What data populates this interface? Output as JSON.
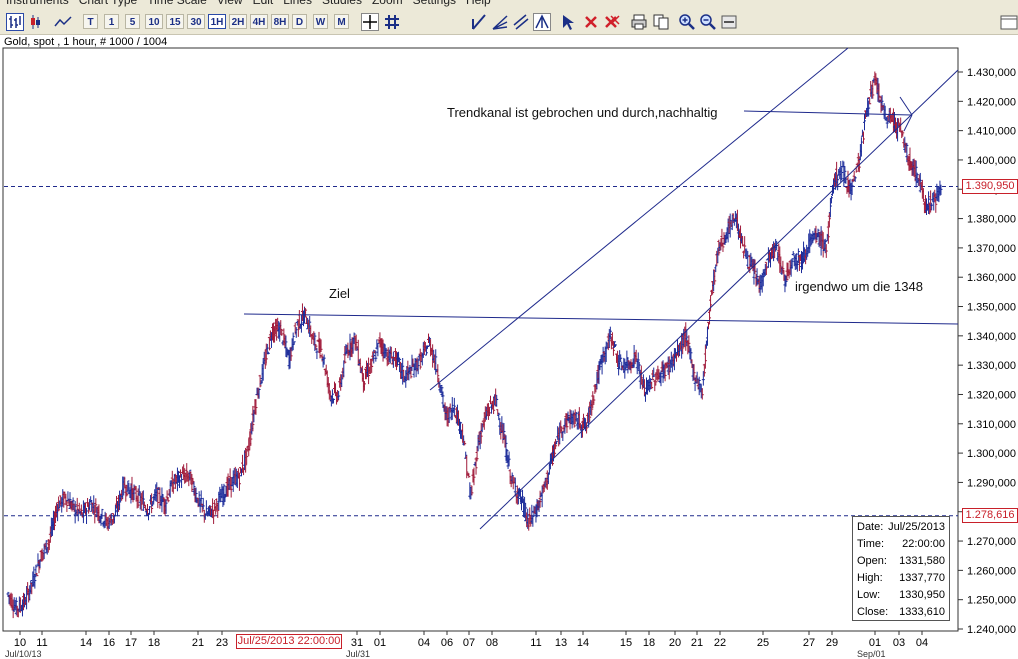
{
  "menu": [
    "Instruments",
    "Chart Type",
    "Time Scale",
    "View",
    "Edit",
    "Lines",
    "Studies",
    "Zoom",
    "Settings",
    "Help"
  ],
  "toolbar": {
    "timeframes": [
      "T",
      "1",
      "5",
      "10",
      "15",
      "30",
      "1H",
      "2H",
      "4H",
      "8H",
      "D",
      "W",
      "M"
    ],
    "active_timeframe": "1H",
    "icons": [
      "bar-chart-icon",
      "candle-chart-icon",
      "line-chart-icon",
      "crosshair-icon",
      "grid-icon",
      "trendline-icon",
      "fan-icon",
      "channel-icon",
      "pitchfork-icon",
      "select-icon",
      "delete-icon",
      "delete-all-icon",
      "print-icon",
      "copy-icon",
      "zoom-in-icon",
      "zoom-out-icon",
      "zoom-fit-icon"
    ]
  },
  "info_line": "Gold, spot , 1 hour, # 1000 / 1004",
  "price_markers": {
    "current": "1.390,950",
    "lower": "1.278,616"
  },
  "time_marker": "Jul/25/2013 22:00:00",
  "ohlc_box": {
    "rows": [
      {
        "key": "Date:",
        "value": "Jul/25/2013"
      },
      {
        "key": "Time:",
        "value": "22:00:00"
      },
      {
        "key": "Open:",
        "value": "1331,580"
      },
      {
        "key": "High:",
        "value": "1337,770"
      },
      {
        "key": "Low:",
        "value": "1330,950"
      },
      {
        "key": "Close:",
        "value": "1333,610"
      }
    ]
  },
  "annotations": {
    "trend": "Trendkanal ist gebrochen und durch,nachhaltig",
    "ziel": "Ziel",
    "target": "irgendwo um die 1348"
  },
  "bottom_labels": {
    "left": "Jul/10/13",
    "mid": "Jul/31",
    "right": "Sep/01"
  },
  "colors": {
    "up_bar": "#1b2b9a",
    "down_bar": "#a01a3a",
    "lines": "#1f2a8c",
    "marker": "#c8202a"
  },
  "chart_data": {
    "type": "bar",
    "title": "Gold, spot , 1 hour, # 1000 / 1004",
    "y_ticks": [
      "1.430,000",
      "1.420,000",
      "1.410,000",
      "1.400,000",
      "1.390,000",
      "1.380,000",
      "1.370,000",
      "1.360,000",
      "1.350,000",
      "1.340,000",
      "1.330,000",
      "1.320,000",
      "1.310,000",
      "1.300,000",
      "1.290,000",
      "1.280,000",
      "1.270,000",
      "1.260,000",
      "1.250,000",
      "1.240,000"
    ],
    "ylim": [
      1240,
      1430
    ],
    "x_ticks": [
      "10",
      "11",
      "14",
      "16",
      "17",
      "18",
      "21",
      "23",
      "31",
      "01",
      "04",
      "06",
      "07",
      "08",
      "11",
      "13",
      "14",
      "15",
      "18",
      "20",
      "21",
      "22",
      "25",
      "27",
      "29",
      "01",
      "03",
      "04"
    ],
    "series": [
      {
        "x": [
          0,
          1,
          2,
          3,
          4,
          5,
          6,
          7,
          8,
          9,
          10,
          11,
          12,
          13,
          14,
          15,
          16,
          17,
          18,
          19,
          20,
          21,
          22,
          23,
          24,
          25,
          26,
          27,
          28,
          29,
          30,
          31,
          32,
          33,
          34,
          35,
          36,
          37,
          38,
          39,
          40,
          41,
          42,
          43,
          44,
          45,
          46,
          47,
          48,
          49,
          50,
          51,
          52,
          53,
          54,
          55,
          56,
          57,
          58,
          59,
          60,
          61,
          62,
          63,
          64,
          65,
          66,
          67,
          68,
          69,
          70,
          71,
          72,
          73,
          74,
          75,
          76,
          77,
          78,
          79,
          80,
          81,
          82,
          83,
          84,
          85,
          86,
          87,
          88,
          89,
          90,
          91,
          92,
          93,
          94,
          95,
          96,
          97,
          98,
          99,
          100,
          101,
          102,
          103,
          104,
          105,
          106,
          107,
          108,
          109,
          110,
          111,
          112,
          113
        ],
        "values": [
          1252,
          1247,
          1249,
          1256,
          1265,
          1270,
          1282,
          1285,
          1281,
          1279,
          1283,
          1280,
          1276,
          1279,
          1289,
          1287,
          1284,
          1281,
          1286,
          1283,
          1290,
          1292,
          1292,
          1284,
          1279,
          1281,
          1286,
          1290,
          1292,
          1300,
          1318,
          1330,
          1342,
          1342,
          1332,
          1344,
          1347,
          1338,
          1335,
          1320,
          1320,
          1335,
          1339,
          1325,
          1330,
          1338,
          1333,
          1332,
          1326,
          1329,
          1332,
          1338,
          1328,
          1312,
          1316,
          1307,
          1285,
          1305,
          1314,
          1318,
          1305,
          1290,
          1285,
          1276,
          1281,
          1289,
          1300,
          1309,
          1312,
          1311,
          1309,
          1322,
          1333,
          1340,
          1330,
          1330,
          1333,
          1321,
          1325,
          1327,
          1330,
          1334,
          1340,
          1327,
          1321,
          1352,
          1370,
          1375,
          1381,
          1370,
          1363,
          1357,
          1366,
          1370,
          1359,
          1367,
          1366,
          1372,
          1374,
          1370,
          1394,
          1396,
          1390,
          1400,
          1419,
          1427,
          1415,
          1414,
          1410,
          1400,
          1395,
          1385,
          1386,
          1390
        ]
      }
    ],
    "horizontal_levels": [
      1390.95,
      1278.616
    ],
    "annotations": [
      "Trendkanal ist gebrochen und durch,nachhaltig",
      "Ziel",
      "irgendwo um die 1348"
    ]
  }
}
